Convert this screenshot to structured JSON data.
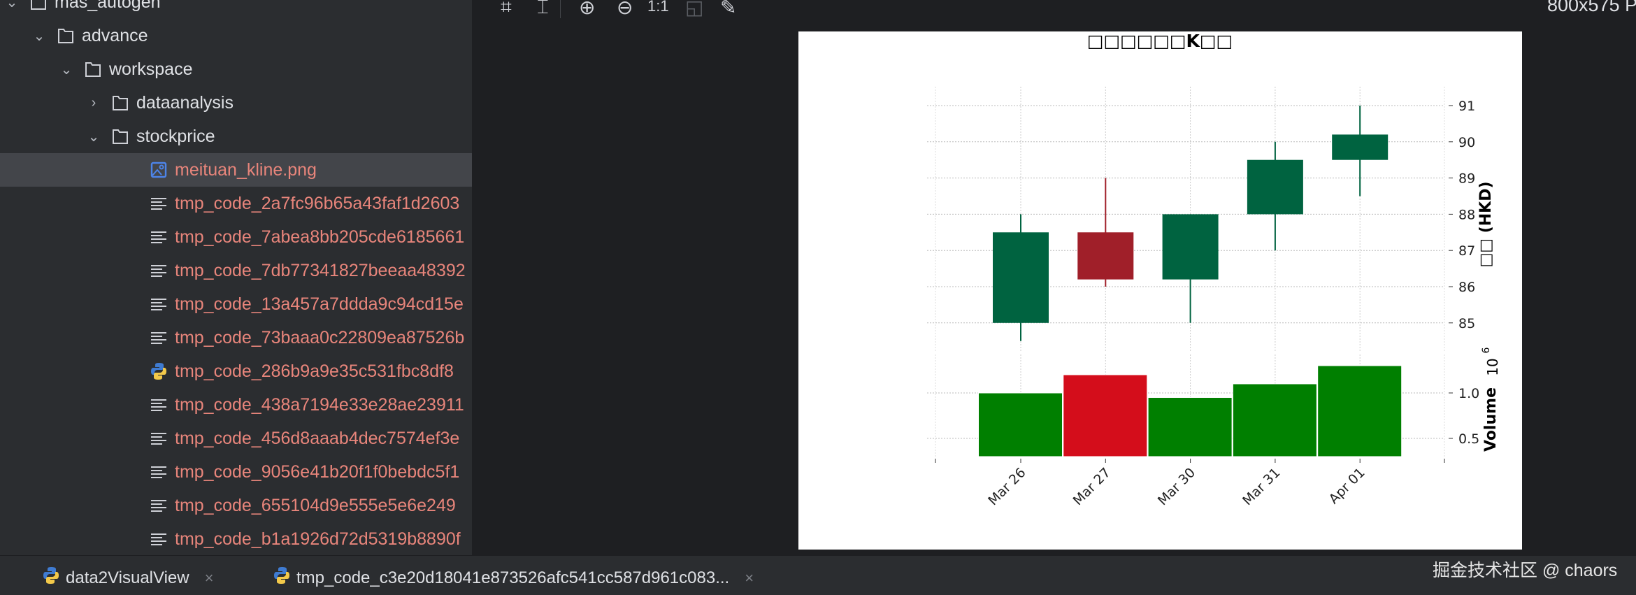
{
  "sidebar": {
    "items": [
      {
        "label": "mas_autogen",
        "type": "folder",
        "level": 0,
        "expanded": true
      },
      {
        "label": "advance",
        "type": "folder",
        "level": 1,
        "expanded": true
      },
      {
        "label": "workspace",
        "type": "folder",
        "level": 2,
        "expanded": true
      },
      {
        "label": "dataanalysis",
        "type": "folder",
        "level": 3,
        "expanded": false
      },
      {
        "label": "stockprice",
        "type": "folder",
        "level": 3,
        "expanded": true
      },
      {
        "label": "meituan_kline.png",
        "type": "image",
        "level": 4,
        "selected": true
      },
      {
        "label": "tmp_code_2a7fc96b65a43faf1d2603",
        "type": "text",
        "level": 4
      },
      {
        "label": "tmp_code_7abea8bb205cde6185661",
        "type": "text",
        "level": 4
      },
      {
        "label": "tmp_code_7db77341827beeaa48392",
        "type": "text",
        "level": 4
      },
      {
        "label": "tmp_code_13a457a7ddda9c94cd15e",
        "type": "text",
        "level": 4
      },
      {
        "label": "tmp_code_73baaa0c22809ea87526b",
        "type": "text",
        "level": 4
      },
      {
        "label": "tmp_code_286b9a9e35c531fbc8df8",
        "type": "python",
        "level": 4
      },
      {
        "label": "tmp_code_438a7194e33e28ae23911",
        "type": "text",
        "level": 4
      },
      {
        "label": "tmp_code_456d8aaab4dec7574ef3e",
        "type": "text",
        "level": 4
      },
      {
        "label": "tmp_code_9056e41b20f1f0bebdc5f1",
        "type": "text",
        "level": 4
      },
      {
        "label": "tmp_code_655104d9e555e5e6e249",
        "type": "text",
        "level": 4
      },
      {
        "label": "tmp_code_b1a1926d72d5319b8890f",
        "type": "text",
        "level": 4
      }
    ]
  },
  "toolbar": {
    "icons": [
      "fit-grid-icon",
      "crop-icon",
      "zoom-in-icon",
      "zoom-out-icon",
      "actual-size-icon",
      "background-icon",
      "color-picker-icon"
    ],
    "actual_size_label": "1:1",
    "image_size": "800x575 P"
  },
  "tabs": [
    {
      "label": "data2VisualView",
      "icon": "python-icon"
    },
    {
      "label": "tmp_code_c3e20d18041e873526afc541cc587d961c083...",
      "icon": "python-icon"
    }
  ],
  "watermark": "掘金技术社区 @ chaors",
  "colors": {
    "up_candle": "#006340",
    "down_candle": "#a01f29",
    "up_volume": "#007f00",
    "down_volume": "#d40d1b",
    "file_text": "#e8857b"
  },
  "chart_data": {
    "type": "candlestick",
    "title": "□□□□□□K□□",
    "categories": [
      "Mar 26",
      "Mar 27",
      "Mar 30",
      "Mar 31",
      "Apr 01"
    ],
    "ohlc": [
      {
        "open": 85.0,
        "high": 88.0,
        "low": 84.5,
        "close": 87.5
      },
      {
        "open": 87.5,
        "high": 89.0,
        "low": 86.0,
        "close": 86.2
      },
      {
        "open": 86.2,
        "high": 88.0,
        "low": 85.0,
        "close": 88.0
      },
      {
        "open": 88.0,
        "high": 90.0,
        "low": 87.0,
        "close": 89.5
      },
      {
        "open": 89.5,
        "high": 91.0,
        "low": 88.5,
        "close": 90.2
      }
    ],
    "volume": [
      1.0,
      1.2,
      0.95,
      1.1,
      1.3
    ],
    "volume_multiplier_label": "10",
    "volume_exponent": "6",
    "price_ylabel": "□□ (HKD)",
    "volume_ylabel": "Volume",
    "price_ticks": [
      "85",
      "86",
      "87",
      "88",
      "89",
      "90",
      "91"
    ],
    "volume_ticks": [
      "0.5",
      "1.0"
    ],
    "price_ylim": [
      83.5,
      91.6
    ],
    "volume_ylim": [
      0.3,
      1.35
    ],
    "grid": true,
    "yaxis_side": "right"
  }
}
